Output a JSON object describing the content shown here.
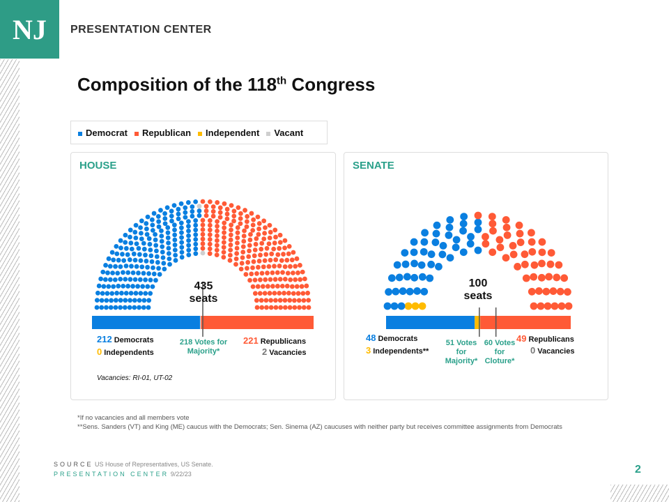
{
  "header": {
    "logo": "NJ",
    "title": "PRESENTATION CENTER"
  },
  "title": {
    "main": "Composition of the 118",
    "sup": "th",
    "end": " Congress"
  },
  "colors": {
    "democrat": "#0a7fe0",
    "republican": "#ff5a36",
    "independent": "#ffbb00",
    "vacant": "#cfcfcf",
    "accent": "#2aa08a"
  },
  "legend": [
    {
      "label": "Democrat",
      "color": "#0a7fe0"
    },
    {
      "label": "Republican",
      "color": "#ff5a36"
    },
    {
      "label": "Independent",
      "color": "#ffbb00"
    },
    {
      "label": "Vacant",
      "color": "#cfcfcf"
    }
  ],
  "chart_data": [
    {
      "type": "parliament",
      "title": "HOUSE",
      "total": 435,
      "total_label": "435",
      "seats_label": "seats",
      "series": [
        {
          "name": "Democrats",
          "value": 212
        },
        {
          "name": "Independents",
          "value": 0
        },
        {
          "name": "Vacancies",
          "value": 2
        },
        {
          "name": "Republicans",
          "value": 221
        }
      ],
      "thresholds": [
        {
          "value": 218,
          "label": "218 Votes for Majority*"
        }
      ],
      "note": "Vacancies: RI-01, UT-02"
    },
    {
      "type": "parliament",
      "title": "SENATE",
      "total": 100,
      "total_label": "100",
      "seats_label": "seats",
      "series": [
        {
          "name": "Democrats",
          "value": 48
        },
        {
          "name": "Independents**",
          "value": 3
        },
        {
          "name": "Vacancies",
          "value": 0
        },
        {
          "name": "Republicans",
          "value": 49
        }
      ],
      "thresholds": [
        {
          "value": 51,
          "label": "51 Votes for Majority*"
        },
        {
          "value": 60,
          "label": "60 Votes for Cloture*"
        }
      ]
    }
  ],
  "footnotes": [
    "*If no vacancies and all members  vote",
    "**Sens. Sanders (VT) and King  (ME)  caucus with the Democrats; Sen. Sinema  (AZ) caucuses with neither party but receives committee assignments from Democrats"
  ],
  "source": {
    "key": "SOURCE",
    "text": "US House of Representatives, US Senate.",
    "center": "PRESENTATION CENTER",
    "date": "9/22/23"
  },
  "page": "2"
}
